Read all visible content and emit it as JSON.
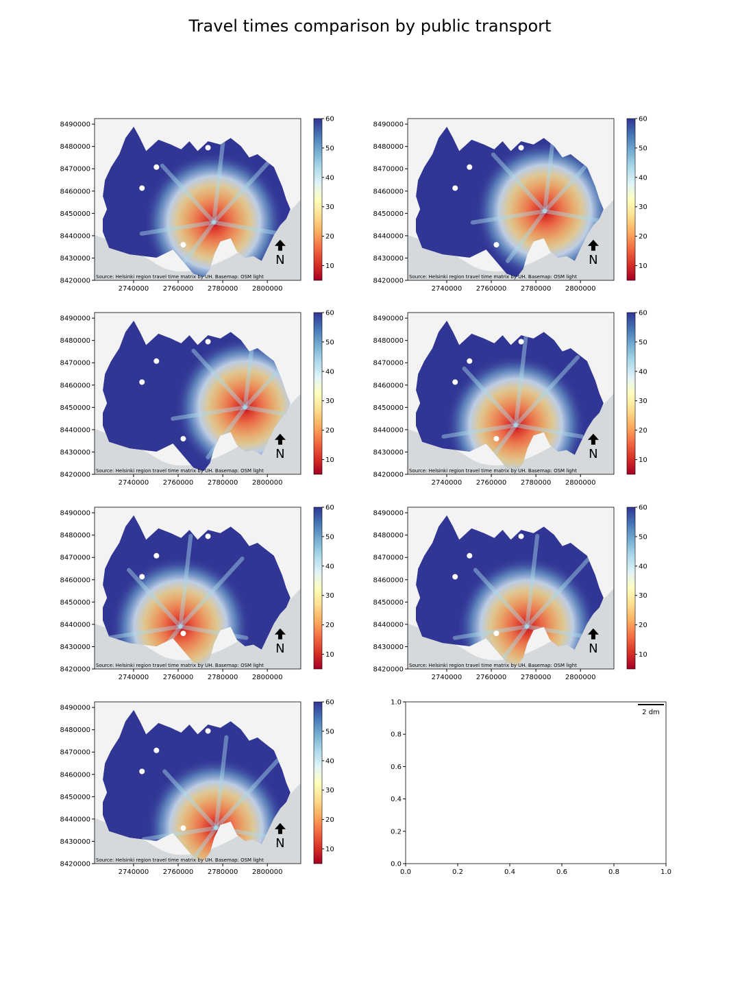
{
  "figure": {
    "title": "Travel times comparison by public transport"
  },
  "colors": {
    "cmap": "RdYlBu",
    "cmap_stops": [
      "#a50026",
      "#d73027",
      "#f46d43",
      "#fdae61",
      "#fee090",
      "#ffffbf",
      "#e0f3f8",
      "#abd9e9",
      "#74add1",
      "#4575b4",
      "#313695"
    ],
    "basemap_land": "#f2f3f2",
    "basemap_water": "#d5d9dc",
    "no_data": "#ffffff"
  },
  "map_common": {
    "x_ticks": [
      2740000,
      2760000,
      2780000,
      2800000
    ],
    "y_ticks": [
      8420000,
      8430000,
      8440000,
      8450000,
      8460000,
      8470000,
      8480000,
      8490000
    ],
    "xlim": [
      2722500,
      2815000
    ],
    "ylim": [
      8420000,
      8492500
    ],
    "colorbar_ticks": [
      10,
      20,
      30,
      40,
      50,
      60
    ],
    "colorbar_range": [
      5,
      60
    ],
    "north_label": "N",
    "source_text": "Source: Helsinki region travel time matrix by UH. Basemap: OSM light"
  },
  "chart_data": [
    {
      "type": "heatmap",
      "panel": 1,
      "metric": "public transport travel time",
      "colorbar_ticks": [
        10,
        20,
        30,
        40,
        50,
        60
      ],
      "xlim": [
        2722500,
        2815000
      ],
      "ylim": [
        8420000,
        8492500
      ],
      "hotspot_center": [
        2776000,
        8446000
      ]
    },
    {
      "type": "heatmap",
      "panel": 2,
      "metric": "public transport travel time",
      "colorbar_ticks": [
        10,
        20,
        30,
        40,
        50,
        60
      ],
      "xlim": [
        2722500,
        2815000
      ],
      "ylim": [
        8420000,
        8492500
      ],
      "hotspot_center": [
        2784000,
        8451000
      ]
    },
    {
      "type": "heatmap",
      "panel": 3,
      "metric": "public transport travel time",
      "colorbar_ticks": [
        10,
        20,
        30,
        40,
        50,
        60
      ],
      "xlim": [
        2722500,
        2815000
      ],
      "ylim": [
        8420000,
        8492500
      ],
      "hotspot_center": [
        2790000,
        8450000
      ]
    },
    {
      "type": "heatmap",
      "panel": 4,
      "metric": "public transport travel time",
      "colorbar_ticks": [
        10,
        20,
        30,
        40,
        50,
        60
      ],
      "xlim": [
        2722500,
        2815000
      ],
      "ylim": [
        8420000,
        8492500
      ],
      "hotspot_center": [
        2771000,
        8442000
      ]
    },
    {
      "type": "heatmap",
      "panel": 5,
      "metric": "public transport travel time",
      "colorbar_ticks": [
        10,
        20,
        30,
        40,
        50,
        60
      ],
      "xlim": [
        2722500,
        2815000
      ],
      "ylim": [
        8420000,
        8492500
      ],
      "hotspot_center": [
        2761000,
        8439000
      ]
    },
    {
      "type": "heatmap",
      "panel": 6,
      "metric": "public transport travel time",
      "colorbar_ticks": [
        10,
        20,
        30,
        40,
        50,
        60
      ],
      "xlim": [
        2722500,
        2815000
      ],
      "ylim": [
        8420000,
        8492500
      ],
      "hotspot_center": [
        2776000,
        8439000
      ]
    },
    {
      "type": "heatmap",
      "panel": 7,
      "metric": "public transport travel time",
      "colorbar_ticks": [
        10,
        20,
        30,
        40,
        50,
        60
      ],
      "xlim": [
        2722500,
        2815000
      ],
      "ylim": [
        8420000,
        8492500
      ],
      "hotspot_center": [
        2777000,
        8436000
      ]
    },
    {
      "type": "empty-axes",
      "panel": 8,
      "x_ticks": [
        "0.0",
        "0.2",
        "0.4",
        "0.6",
        "0.8",
        "1.0"
      ],
      "y_ticks": [
        "0.0",
        "0.2",
        "0.4",
        "0.6",
        "0.8",
        "1.0"
      ],
      "xlim": [
        0,
        1
      ],
      "ylim": [
        0,
        1
      ],
      "scalebar_label": "2 dm"
    }
  ]
}
